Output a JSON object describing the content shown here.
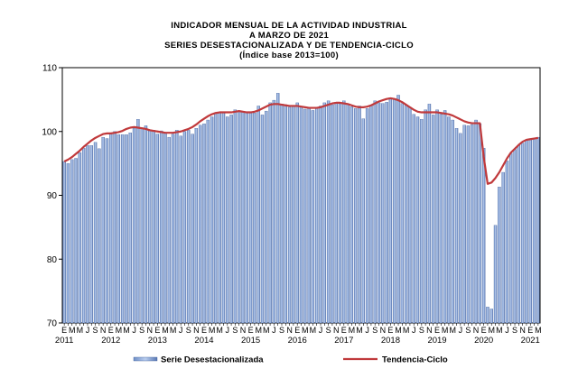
{
  "chart_data": {
    "type": "bar",
    "title": [
      "INDICADOR MENSUAL DE LA ACTIVIDAD INDUSTRIAL",
      "A MARZO DE 2021",
      "SERIES DESESTACIONALIZADA  Y DE TENDENCIA-CICLO",
      "(Índice base 2013=100)"
    ],
    "ylim": [
      70,
      110
    ],
    "yticks": [
      70,
      80,
      90,
      100,
      110
    ],
    "month_tick_labels": [
      "E",
      "M",
      "M",
      "J",
      "S",
      "N"
    ],
    "years": [
      "2011",
      "2012",
      "2013",
      "2014",
      "2015",
      "2016",
      "2017",
      "2018",
      "2019",
      "2020",
      "2021"
    ],
    "x_start": "2011-01",
    "x_end": "2021-03",
    "series": [
      {
        "name": "Serie Desestacionalizada",
        "type": "bar",
        "color": "#8fa8d4",
        "values": [
          95.3,
          95.0,
          95.6,
          95.8,
          96.7,
          97.4,
          97.8,
          97.8,
          98.3,
          97.3,
          99.1,
          98.9,
          99.6,
          100.0,
          99.5,
          99.5,
          99.5,
          99.8,
          100.5,
          101.9,
          100.6,
          100.9,
          100.1,
          100.2,
          99.6,
          100.1,
          99.7,
          99.1,
          99.6,
          100.2,
          99.3,
          100.0,
          100.2,
          99.6,
          100.5,
          101.0,
          101.2,
          101.8,
          102.3,
          102.9,
          103.0,
          103.0,
          102.3,
          102.6,
          103.4,
          103.2,
          103.1,
          102.9,
          102.9,
          102.9,
          104.0,
          102.6,
          103.2,
          104.5,
          104.9,
          106.0,
          104.3,
          104.2,
          103.8,
          104.1,
          104.5,
          103.9,
          103.5,
          103.8,
          103.3,
          103.7,
          104.0,
          104.5,
          104.8,
          104.2,
          104.6,
          104.3,
          104.8,
          104.3,
          103.9,
          103.6,
          104.0,
          102.0,
          103.6,
          104.1,
          104.8,
          104.5,
          104.4,
          104.6,
          105.3,
          105.0,
          105.7,
          104.4,
          104.1,
          103.8,
          102.7,
          102.3,
          101.9,
          103.4,
          104.3,
          102.6,
          103.4,
          102.7,
          103.3,
          102.3,
          101.8,
          100.5,
          99.7,
          101.0,
          100.9,
          101.1,
          101.8,
          101.2,
          97.4,
          72.5,
          72.2,
          85.3,
          91.3,
          93.6,
          95.4,
          96.6,
          97.2,
          97.8,
          98.2,
          98.6,
          98.7,
          98.8,
          99.1
        ]
      },
      {
        "name": "Tendencia-Ciclo",
        "type": "line",
        "color": "#c0393b",
        "values": [
          95.3,
          95.6,
          96.0,
          96.5,
          97.0,
          97.6,
          98.1,
          98.6,
          99.0,
          99.3,
          99.6,
          99.7,
          99.7,
          99.8,
          99.9,
          100.1,
          100.4,
          100.6,
          100.7,
          100.6,
          100.5,
          100.4,
          100.2,
          100.1,
          100.0,
          99.9,
          99.8,
          99.8,
          99.8,
          99.9,
          100.0,
          100.2,
          100.4,
          100.7,
          101.1,
          101.6,
          102.0,
          102.4,
          102.7,
          102.9,
          103.0,
          103.0,
          103.0,
          103.0,
          103.1,
          103.2,
          103.1,
          103.0,
          103.0,
          103.1,
          103.3,
          103.6,
          103.9,
          104.2,
          104.3,
          104.3,
          104.2,
          104.1,
          104.0,
          104.0,
          104.0,
          103.9,
          103.8,
          103.7,
          103.7,
          103.7,
          103.8,
          104.0,
          104.2,
          104.4,
          104.5,
          104.5,
          104.4,
          104.3,
          104.1,
          103.9,
          103.8,
          103.8,
          103.9,
          104.1,
          104.4,
          104.7,
          104.9,
          105.1,
          105.2,
          105.1,
          104.9,
          104.6,
          104.2,
          103.8,
          103.4,
          103.1,
          103.0,
          103.0,
          103.0,
          103.0,
          103.0,
          102.9,
          102.8,
          102.7,
          102.5,
          102.2,
          101.9,
          101.6,
          101.4,
          101.3,
          101.3,
          101.3,
          96.0,
          91.8,
          92.0,
          92.7,
          93.6,
          94.7,
          95.8,
          96.7,
          97.3,
          97.9,
          98.4,
          98.7,
          98.8,
          98.9,
          99.0
        ]
      }
    ],
    "legend": {
      "position": "bottom"
    },
    "grid": false
  }
}
